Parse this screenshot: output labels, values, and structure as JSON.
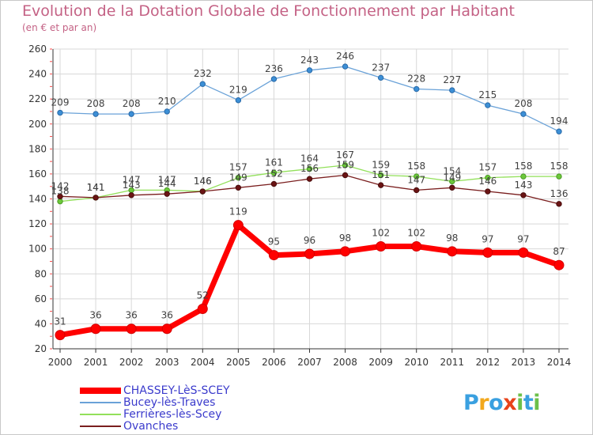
{
  "chart_data": {
    "type": "line",
    "title": "Evolution de la Dotation Globale de Fonctionnement par Habitant",
    "subtitle": "(en € et par an)",
    "x": [
      "2000",
      "2001",
      "2002",
      "2003",
      "2004",
      "2005",
      "2006",
      "2007",
      "2008",
      "2009",
      "2010",
      "2011",
      "2012",
      "2013",
      "2014"
    ],
    "ylim": [
      20,
      260
    ],
    "yticks": [
      "20",
      "40",
      "60",
      "80",
      "100",
      "120",
      "140",
      "160",
      "180",
      "200",
      "220",
      "240",
      "260"
    ],
    "grid": true,
    "legend_position": "bottom-left",
    "series": [
      {
        "name": "CHASSEY-LèS-SCEY",
        "color": "#ff0000",
        "values": [
          31,
          36,
          36,
          36,
          52,
          119,
          95,
          96,
          98,
          102,
          102,
          98,
          97,
          97,
          87
        ]
      },
      {
        "name": "Bucey-lès-Traves",
        "color": "#6aa2d8",
        "values": [
          209,
          208,
          208,
          210,
          232,
          219,
          236,
          243,
          246,
          237,
          228,
          227,
          215,
          208,
          194
        ]
      },
      {
        "name": "Ferrières-lès-Scey",
        "color": "#92e05a",
        "values": [
          138,
          141,
          147,
          147,
          146,
          157,
          161,
          164,
          167,
          159,
          158,
          154,
          157,
          158,
          158
        ]
      },
      {
        "name": "Ovanches",
        "color": "#7a1e1e",
        "values": [
          142,
          141,
          143,
          144,
          146,
          149,
          152,
          156,
          159,
          151,
          147,
          149,
          146,
          143,
          136
        ]
      }
    ]
  },
  "logo": {
    "text": "Proxiti",
    "colors": [
      "#3aa0e0",
      "#f2a81d",
      "#3aa0e0",
      "#e8431b",
      "#6cc04a",
      "#3aa0e0",
      "#6cc04a"
    ]
  }
}
